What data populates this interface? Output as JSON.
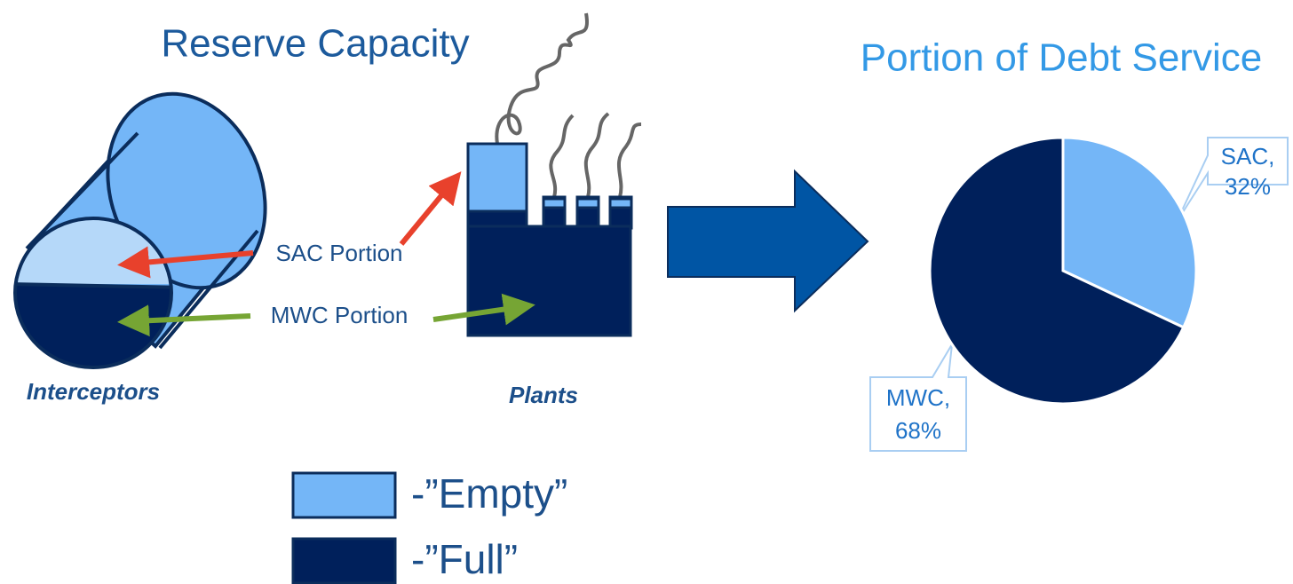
{
  "title": "Reserve Capacity",
  "diagram": {
    "interceptors": "Interceptors",
    "plants": "Plants",
    "sac_portion": "SAC Portion",
    "mwc_portion": "MWC Portion"
  },
  "legend": [
    {
      "label": "-”Empty”",
      "color": "#74b6f7"
    },
    {
      "label": "-”Full”",
      "color": "#00205b"
    }
  ],
  "chart_data": {
    "type": "pie",
    "title": "Portion of Debt Service",
    "categories": [
      "SAC,",
      "MWC,"
    ],
    "values": [
      32,
      68
    ],
    "value_labels": [
      "32%",
      "68%"
    ],
    "colors": [
      "#74b6f7",
      "#00205b"
    ]
  }
}
